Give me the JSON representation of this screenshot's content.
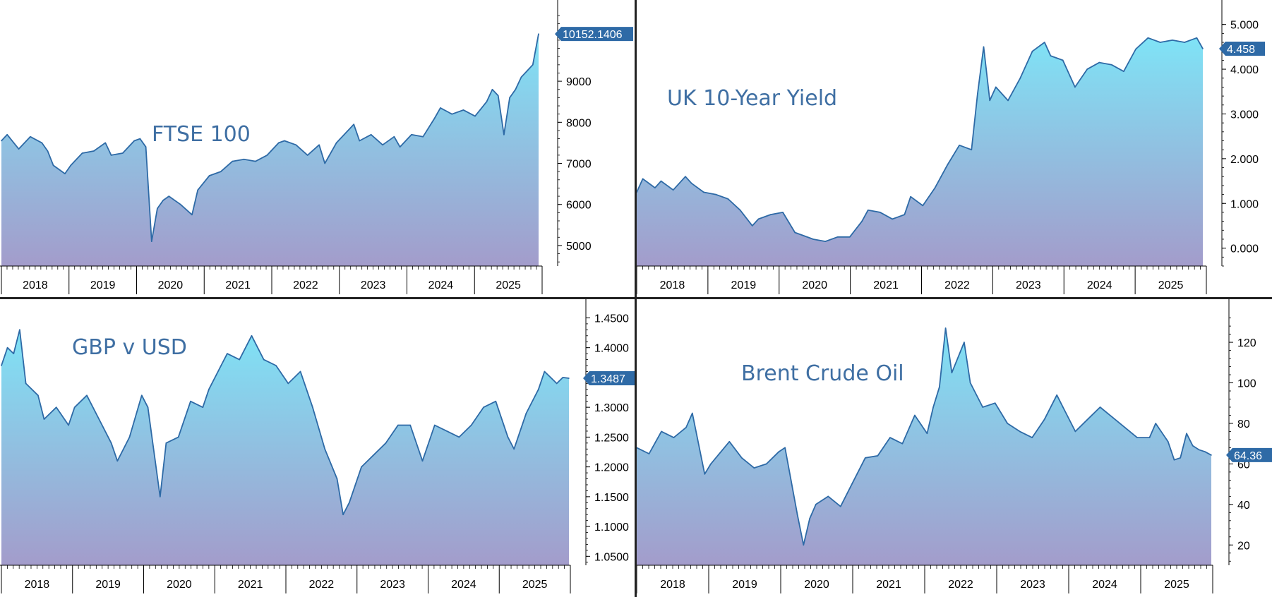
{
  "colors": {
    "line": "#2e6aa6",
    "fill_top": "#7fe3f6",
    "fill_bottom": "#a39ccb",
    "axis": "#000000",
    "tag_bg": "#2e6aa6",
    "tag_text": "#ffffff",
    "title": "#3f6fa3"
  },
  "chart_data": [
    {
      "type": "area",
      "title": "FTSE 100",
      "years": [
        "2018",
        "2019",
        "2020",
        "2021",
        "2022",
        "2023",
        "2024",
        "2025"
      ],
      "x": [
        "2018-01",
        "2018-02",
        "2018-04",
        "2018-06",
        "2018-08",
        "2018-09",
        "2018-10",
        "2018-12",
        "2019-01",
        "2019-03",
        "2019-05",
        "2019-07",
        "2019-08",
        "2019-10",
        "2019-12",
        "2020-01",
        "2020-02",
        "2020-03",
        "2020-04",
        "2020-05",
        "2020-06",
        "2020-08",
        "2020-10",
        "2020-11",
        "2021-01",
        "2021-03",
        "2021-05",
        "2021-07",
        "2021-09",
        "2021-11",
        "2022-01",
        "2022-02",
        "2022-04",
        "2022-06",
        "2022-08",
        "2022-09",
        "2022-11",
        "2023-01",
        "2023-02",
        "2023-03",
        "2023-05",
        "2023-07",
        "2023-09",
        "2023-10",
        "2023-12",
        "2024-02",
        "2024-04",
        "2024-05",
        "2024-07",
        "2024-09",
        "2024-11",
        "2025-01",
        "2025-02",
        "2025-03",
        "2025-04",
        "2025-05",
        "2025-06",
        "2025-07",
        "2025-08",
        "2025-09",
        "2025-10"
      ],
      "y": [
        7550,
        7700,
        7350,
        7650,
        7500,
        7300,
        6950,
        6750,
        6950,
        7250,
        7300,
        7500,
        7200,
        7250,
        7550,
        7600,
        7400,
        5100,
        5900,
        6100,
        6200,
        6000,
        5750,
        6350,
        6700,
        6800,
        7050,
        7100,
        7050,
        7200,
        7500,
        7550,
        7450,
        7200,
        7450,
        7000,
        7500,
        7800,
        7950,
        7550,
        7700,
        7450,
        7650,
        7400,
        7700,
        7650,
        8100,
        8350,
        8200,
        8300,
        8150,
        8500,
        8800,
        8650,
        7700,
        8600,
        8800,
        9100,
        9250,
        9400,
        10152.1406
      ],
      "ylim": [
        4500,
        10600
      ],
      "yticks": [
        "5000",
        "6000",
        "7000",
        "8000",
        "9000"
      ],
      "last_value": "10152.1406"
    },
    {
      "type": "area",
      "title": "UK 10-Year Yield",
      "years": [
        "2018",
        "2019",
        "2020",
        "2021",
        "2022",
        "2023",
        "2024",
        "2025"
      ],
      "x": [
        "2018-01",
        "2018-02",
        "2018-04",
        "2018-05",
        "2018-07",
        "2018-09",
        "2018-10",
        "2018-12",
        "2019-02",
        "2019-04",
        "2019-06",
        "2019-08",
        "2019-09",
        "2019-11",
        "2020-01",
        "2020-03",
        "2020-04",
        "2020-06",
        "2020-08",
        "2020-10",
        "2020-12",
        "2021-02",
        "2021-03",
        "2021-05",
        "2021-07",
        "2021-09",
        "2021-10",
        "2021-12",
        "2022-02",
        "2022-04",
        "2022-06",
        "2022-08",
        "2022-09",
        "2022-10",
        "2022-11",
        "2022-12",
        "2023-02",
        "2023-04",
        "2023-06",
        "2023-08",
        "2023-09",
        "2023-11",
        "2024-01",
        "2024-03",
        "2024-05",
        "2024-07",
        "2024-09",
        "2024-11",
        "2025-01",
        "2025-03",
        "2025-05",
        "2025-07",
        "2025-09",
        "2025-10"
      ],
      "y": [
        1.25,
        1.55,
        1.35,
        1.5,
        1.3,
        1.6,
        1.45,
        1.25,
        1.2,
        1.1,
        0.85,
        0.5,
        0.65,
        0.75,
        0.8,
        0.35,
        0.3,
        0.2,
        0.15,
        0.25,
        0.25,
        0.6,
        0.85,
        0.8,
        0.65,
        0.75,
        1.15,
        0.95,
        1.35,
        1.85,
        2.3,
        2.2,
        3.45,
        4.5,
        3.3,
        3.6,
        3.3,
        3.8,
        4.4,
        4.6,
        4.3,
        4.2,
        3.6,
        4.0,
        4.15,
        4.1,
        3.95,
        4.45,
        4.7,
        4.6,
        4.65,
        4.6,
        4.7,
        4.458
      ],
      "ylim": [
        -0.4,
        5.2
      ],
      "yticks": [
        "0.000",
        "1.000",
        "2.000",
        "3.000",
        "4.000",
        "5.000"
      ],
      "last_value": "4.458"
    },
    {
      "type": "area",
      "title": "GBP v USD",
      "years": [
        "2018",
        "2019",
        "2020",
        "2021",
        "2022",
        "2023",
        "2024",
        "2025"
      ],
      "x": [
        "2018-01",
        "2018-02",
        "2018-03",
        "2018-04",
        "2018-05",
        "2018-07",
        "2018-08",
        "2018-10",
        "2018-12",
        "2019-01",
        "2019-03",
        "2019-05",
        "2019-07",
        "2019-08",
        "2019-10",
        "2019-12",
        "2020-01",
        "2020-03",
        "2020-04",
        "2020-06",
        "2020-08",
        "2020-10",
        "2020-11",
        "2021-01",
        "2021-02",
        "2021-04",
        "2021-06",
        "2021-08",
        "2021-10",
        "2021-12",
        "2022-02",
        "2022-04",
        "2022-06",
        "2022-08",
        "2022-09",
        "2022-10",
        "2022-12",
        "2023-02",
        "2023-04",
        "2023-06",
        "2023-08",
        "2023-10",
        "2023-12",
        "2024-02",
        "2024-04",
        "2024-06",
        "2024-08",
        "2024-10",
        "2024-12",
        "2025-01",
        "2025-03",
        "2025-05",
        "2025-06",
        "2025-07",
        "2025-08",
        "2025-09",
        "2025-10"
      ],
      "y": [
        1.37,
        1.4,
        1.39,
        1.43,
        1.34,
        1.32,
        1.28,
        1.3,
        1.27,
        1.3,
        1.32,
        1.28,
        1.24,
        1.21,
        1.25,
        1.32,
        1.3,
        1.15,
        1.24,
        1.25,
        1.31,
        1.3,
        1.33,
        1.37,
        1.39,
        1.38,
        1.42,
        1.38,
        1.37,
        1.34,
        1.36,
        1.3,
        1.23,
        1.18,
        1.12,
        1.14,
        1.2,
        1.22,
        1.24,
        1.27,
        1.27,
        1.21,
        1.27,
        1.26,
        1.25,
        1.27,
        1.3,
        1.31,
        1.25,
        1.23,
        1.29,
        1.33,
        1.36,
        1.35,
        1.34,
        1.35,
        1.3487
      ],
      "ylim": [
        1.035,
        1.46
      ],
      "yticks": [
        "1.0500",
        "1.1000",
        "1.1500",
        "1.2000",
        "1.2500",
        "1.3000",
        "1.3500",
        "1.4000",
        "1.4500"
      ],
      "last_value": "1.3487"
    },
    {
      "type": "area",
      "title": "Brent Crude Oil",
      "years": [
        "2018",
        "2019",
        "2020",
        "2021",
        "2022",
        "2023",
        "2024",
        "2025"
      ],
      "x": [
        "2018-01",
        "2018-03",
        "2018-05",
        "2018-07",
        "2018-09",
        "2018-10",
        "2018-12",
        "2019-01",
        "2019-04",
        "2019-06",
        "2019-08",
        "2019-10",
        "2019-12",
        "2020-01",
        "2020-03",
        "2020-04",
        "2020-05",
        "2020-06",
        "2020-08",
        "2020-10",
        "2020-12",
        "2021-02",
        "2021-04",
        "2021-06",
        "2021-08",
        "2021-10",
        "2021-12",
        "2022-01",
        "2022-02",
        "2022-03",
        "2022-04",
        "2022-06",
        "2022-07",
        "2022-09",
        "2022-11",
        "2023-01",
        "2023-03",
        "2023-05",
        "2023-07",
        "2023-09",
        "2023-10",
        "2023-12",
        "2024-02",
        "2024-04",
        "2024-06",
        "2024-08",
        "2024-10",
        "2024-12",
        "2025-01",
        "2025-03",
        "2025-04",
        "2025-05",
        "2025-06",
        "2025-07",
        "2025-08",
        "2025-09",
        "2025-10"
      ],
      "y": [
        68,
        65,
        76,
        73,
        78,
        85,
        55,
        60,
        71,
        63,
        58,
        60,
        66,
        68,
        35,
        20,
        33,
        40,
        44,
        39,
        51,
        63,
        64,
        73,
        70,
        84,
        75,
        88,
        98,
        127,
        105,
        120,
        100,
        88,
        90,
        80,
        76,
        73,
        82,
        94,
        88,
        76,
        82,
        88,
        83,
        78,
        73,
        73,
        80,
        71,
        62,
        63,
        75,
        69,
        67,
        66,
        64.36
      ],
      "ylim": [
        10,
        135
      ],
      "yticks": [
        "20",
        "40",
        "60",
        "80",
        "100",
        "120"
      ],
      "last_value": "64.36"
    }
  ]
}
